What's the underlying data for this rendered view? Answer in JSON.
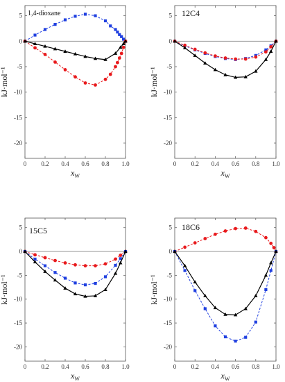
{
  "chart_data": [
    {
      "type": "line",
      "label": "1,4-dioxane",
      "xlabel": "x_W",
      "ylabel": "kJ·mol⁻¹",
      "xlim": [
        0,
        1
      ],
      "ylim": [
        -23,
        7
      ],
      "x_ticks": [
        0,
        0.2,
        0.4,
        0.6,
        0.8,
        1.0
      ],
      "x_tick_labels": [
        "0",
        "0.2",
        "0.4",
        "0.6",
        "0.8",
        "1.0"
      ],
      "y_ticks": [
        5,
        0,
        -5,
        -10,
        -15,
        -20
      ],
      "y_tick_labels": [
        "5",
        "0",
        "-5",
        "-10",
        "-15",
        "-20"
      ],
      "series": [
        {
          "marker": "square",
          "color": "#1f3fe0",
          "dashed": true,
          "x": [
            0,
            0.1,
            0.2,
            0.3,
            0.4,
            0.5,
            0.6,
            0.7,
            0.8,
            0.85,
            0.9,
            0.92,
            0.94,
            0.96,
            0.98,
            1.0
          ],
          "y": [
            0,
            1.2,
            2.3,
            3.3,
            4.2,
            4.9,
            5.3,
            5.0,
            4.0,
            3.0,
            2.3,
            1.8,
            1.3,
            0.9,
            0.4,
            0
          ]
        },
        {
          "marker": "circle",
          "color": "#e8191c",
          "dashed": true,
          "x": [
            0,
            0.1,
            0.2,
            0.3,
            0.4,
            0.5,
            0.6,
            0.7,
            0.8,
            0.85,
            0.9,
            0.92,
            0.94,
            0.96,
            0.98,
            1.0
          ],
          "y": [
            0,
            -1.3,
            -2.6,
            -4.1,
            -5.6,
            -7.0,
            -8.2,
            -8.6,
            -7.5,
            -6.5,
            -5.0,
            -4.2,
            -3.3,
            -2.4,
            -1.2,
            0
          ]
        },
        {
          "marker": "triangle",
          "color": "#000000",
          "dashed": false,
          "x": [
            0,
            0.1,
            0.2,
            0.3,
            0.4,
            0.5,
            0.6,
            0.7,
            0.8,
            0.9,
            0.95,
            0.98,
            1.0
          ],
          "y": [
            0,
            -0.5,
            -1.0,
            -1.5,
            -2.0,
            -2.5,
            -3.0,
            -3.4,
            -3.6,
            -2.4,
            -1.2,
            -0.5,
            0
          ]
        }
      ]
    },
    {
      "type": "line",
      "label": "12C4",
      "xlabel": "x_W",
      "ylabel": "kJ·mol⁻¹",
      "xlim": [
        0,
        1
      ],
      "ylim": [
        -23,
        7
      ],
      "x_ticks": [
        0,
        0.2,
        0.4,
        0.6,
        0.8,
        1.0
      ],
      "x_tick_labels": [
        "0",
        "0.2",
        "0.4",
        "0.6",
        "0.8",
        "1.0"
      ],
      "y_ticks": [
        5,
        0,
        -5,
        -10,
        -15,
        -20
      ],
      "y_tick_labels": [
        "5",
        "0",
        "-5",
        "-10",
        "-15",
        "-20"
      ],
      "series": [
        {
          "marker": "square",
          "color": "#1f3fe0",
          "dashed": true,
          "x": [
            0,
            0.1,
            0.2,
            0.3,
            0.4,
            0.5,
            0.6,
            0.7,
            0.8,
            0.9,
            0.95,
            1.0
          ],
          "y": [
            0,
            -0.9,
            -1.7,
            -2.4,
            -3.0,
            -3.4,
            -3.6,
            -3.4,
            -2.8,
            -1.7,
            -0.9,
            0
          ]
        },
        {
          "marker": "circle",
          "color": "#e8191c",
          "dashed": true,
          "x": [
            0,
            0.1,
            0.2,
            0.3,
            0.4,
            0.5,
            0.6,
            0.7,
            0.8,
            0.9,
            0.95,
            1.0
          ],
          "y": [
            0,
            -0.8,
            -1.6,
            -2.3,
            -2.9,
            -3.3,
            -3.5,
            -3.5,
            -3.1,
            -2.1,
            -1.1,
            0
          ]
        },
        {
          "marker": "triangle",
          "color": "#000000",
          "dashed": false,
          "x": [
            0,
            0.1,
            0.2,
            0.3,
            0.4,
            0.5,
            0.6,
            0.7,
            0.8,
            0.9,
            0.95,
            1.0
          ],
          "y": [
            0,
            -1.3,
            -2.8,
            -4.3,
            -5.6,
            -6.6,
            -7.1,
            -7.0,
            -5.9,
            -3.6,
            -2.0,
            0
          ]
        }
      ]
    },
    {
      "type": "line",
      "label": "15C5",
      "xlabel": "x_W",
      "ylabel": "kJ·mol⁻¹",
      "xlim": [
        0,
        1
      ],
      "ylim": [
        -23,
        7
      ],
      "x_ticks": [
        0,
        0.2,
        0.4,
        0.6,
        0.8,
        1.0
      ],
      "x_tick_labels": [
        "0",
        "0.2",
        "0.4",
        "0.6",
        "0.8",
        "1.0"
      ],
      "y_ticks": [
        5,
        0,
        -5,
        -10,
        -15,
        -20
      ],
      "y_tick_labels": [
        "5",
        "0",
        "-5",
        "-10",
        "-15",
        "-20"
      ],
      "series": [
        {
          "marker": "circle",
          "color": "#e8191c",
          "dashed": true,
          "x": [
            0,
            0.1,
            0.2,
            0.3,
            0.4,
            0.5,
            0.6,
            0.7,
            0.8,
            0.9,
            0.95,
            1.0
          ],
          "y": [
            0,
            -0.7,
            -1.3,
            -1.9,
            -2.4,
            -2.8,
            -3.0,
            -3.0,
            -2.6,
            -1.6,
            -0.8,
            0
          ]
        },
        {
          "marker": "square",
          "color": "#1f3fe0",
          "dashed": true,
          "x": [
            0,
            0.1,
            0.2,
            0.3,
            0.4,
            0.5,
            0.6,
            0.7,
            0.8,
            0.9,
            0.95,
            1.0
          ],
          "y": [
            0,
            -1.6,
            -3.0,
            -4.4,
            -5.6,
            -6.6,
            -7.0,
            -6.7,
            -5.3,
            -2.9,
            -1.5,
            0
          ]
        },
        {
          "marker": "triangle",
          "color": "#000000",
          "dashed": false,
          "x": [
            0,
            0.1,
            0.2,
            0.3,
            0.4,
            0.5,
            0.6,
            0.7,
            0.8,
            0.9,
            0.95,
            1.0
          ],
          "y": [
            0,
            -2.2,
            -4.2,
            -6.0,
            -7.7,
            -8.9,
            -9.4,
            -9.3,
            -8.0,
            -4.6,
            -2.4,
            0
          ]
        }
      ]
    },
    {
      "type": "line",
      "label": "18C6",
      "xlabel": "x_W",
      "ylabel": "kJ·mol⁻¹",
      "xlim": [
        0,
        1
      ],
      "ylim": [
        -23,
        7
      ],
      "x_ticks": [
        0,
        0.2,
        0.4,
        0.6,
        0.8,
        1.0
      ],
      "x_tick_labels": [
        "0",
        "0.2",
        "0.4",
        "0.6",
        "0.8",
        "1.0"
      ],
      "y_ticks": [
        5,
        0,
        -5,
        -10,
        -15,
        -20
      ],
      "y_tick_labels": [
        "5",
        "0",
        "-5",
        "-10",
        "-15",
        "-20"
      ],
      "series": [
        {
          "marker": "circle",
          "color": "#e8191c",
          "dashed": true,
          "x": [
            0,
            0.1,
            0.2,
            0.3,
            0.4,
            0.5,
            0.6,
            0.7,
            0.8,
            0.9,
            0.95,
            0.98,
            1.0
          ],
          "y": [
            0,
            0.9,
            1.8,
            2.7,
            3.6,
            4.3,
            4.8,
            4.9,
            4.2,
            2.9,
            1.7,
            0.8,
            0
          ]
        },
        {
          "marker": "square",
          "color": "#1f3fe0",
          "dashed": true,
          "x": [
            0,
            0.1,
            0.2,
            0.3,
            0.4,
            0.5,
            0.6,
            0.7,
            0.8,
            0.9,
            0.95,
            1.0
          ],
          "y": [
            0,
            -4.0,
            -8.2,
            -12.0,
            -15.6,
            -17.9,
            -18.8,
            -18.0,
            -14.8,
            -8.0,
            -4.0,
            0
          ]
        },
        {
          "marker": "triangle",
          "color": "#000000",
          "dashed": false,
          "x": [
            0,
            0.1,
            0.2,
            0.3,
            0.4,
            0.5,
            0.6,
            0.7,
            0.8,
            0.9,
            0.95,
            1.0
          ],
          "y": [
            0,
            -3.0,
            -6.4,
            -9.3,
            -11.8,
            -13.2,
            -13.3,
            -12.0,
            -9.3,
            -5.0,
            -2.4,
            0
          ]
        }
      ]
    }
  ]
}
